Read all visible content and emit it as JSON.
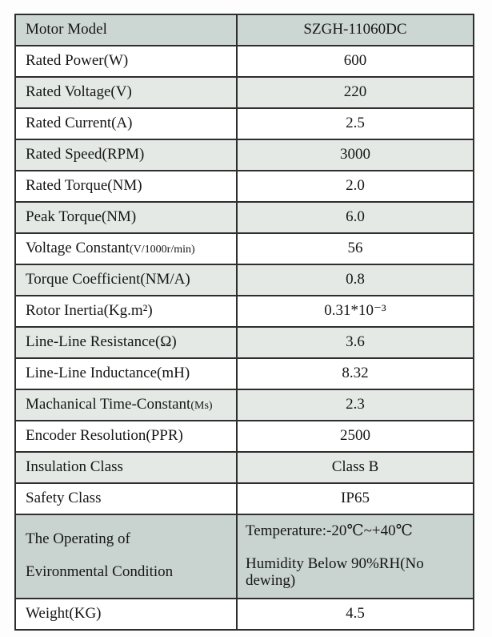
{
  "table": {
    "colors": {
      "row_header_bg": "#ccd7d3",
      "row_alt_bg": "#e4e9e6",
      "row_env_bg": "#c9d4d0",
      "border": "#2e2e2e"
    },
    "rows": [
      {
        "label": "Motor Model",
        "label_small": "",
        "value": "SZGH-11060DC"
      },
      {
        "label": "Rated Power(W)",
        "label_small": "",
        "value": "600"
      },
      {
        "label": "Rated Voltage(V)",
        "label_small": "",
        "value": "220"
      },
      {
        "label": "Rated Current(A)",
        "label_small": "",
        "value": "2.5"
      },
      {
        "label": "Rated Speed(RPM)",
        "label_small": "",
        "value": "3000"
      },
      {
        "label": "Rated Torque(NM)",
        "label_small": "",
        "value": "2.0"
      },
      {
        "label": "Peak Torque(NM)",
        "label_small": "",
        "value": "6.0"
      },
      {
        "label": "Voltage Constant",
        "label_small": "(V/1000r/min)",
        "value": "56"
      },
      {
        "label": "Torque Coefficient(NM/A)",
        "label_small": "",
        "value": "0.8"
      },
      {
        "label": "Rotor Inertia(Kg.m²)",
        "label_small": "",
        "value": "0.31*10⁻³"
      },
      {
        "label": "Line-Line Resistance(Ω)",
        "label_small": "",
        "value": "3.6"
      },
      {
        "label": "Line-Line Inductance(mH)",
        "label_small": "",
        "value": "8.32"
      },
      {
        "label": "Machanical Time-Constant",
        "label_small": "(Ms)",
        "value": "2.3"
      },
      {
        "label": "Encoder Resolution(PPR)",
        "label_small": "",
        "value": "2500"
      },
      {
        "label": "Insulation Class",
        "label_small": "",
        "value": "Class B"
      },
      {
        "label": "Safety Class",
        "label_small": "",
        "value": "IP65"
      },
      {
        "label": "The Operating of",
        "label2": "Evironmental Condition",
        "value": "Temperature:-20℃~+40℃",
        "value2": "Humidity Below 90%RH(No dewing)"
      },
      {
        "label": "Weight(KG)",
        "label_small": "",
        "value": "4.5"
      }
    ]
  }
}
